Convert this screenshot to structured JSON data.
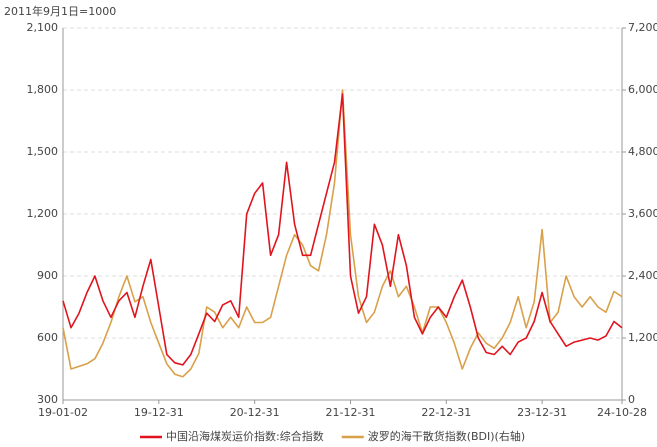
{
  "chart_data": {
    "type": "line",
    "subtitle": "2011年9月1日=1000",
    "categories": [
      "19-01-02",
      null,
      null,
      null,
      null,
      null,
      null,
      null,
      null,
      null,
      null,
      null,
      "19-12-31",
      null,
      null,
      null,
      null,
      null,
      null,
      null,
      null,
      null,
      null,
      null,
      "20-12-31",
      null,
      null,
      null,
      null,
      null,
      null,
      null,
      null,
      null,
      null,
      null,
      "21-12-31",
      null,
      null,
      null,
      null,
      null,
      null,
      null,
      null,
      null,
      null,
      null,
      "22-12-31",
      null,
      null,
      null,
      null,
      null,
      null,
      null,
      null,
      null,
      null,
      null,
      "23-12-31",
      null,
      null,
      null,
      null,
      null,
      null,
      null,
      null,
      null,
      "24-10-28"
    ],
    "series": [
      {
        "name": "中国沿海煤炭运价指数:综合指数",
        "color": "#e0141e",
        "values": [
          780,
          650,
          720,
          820,
          900,
          780,
          700,
          780,
          820,
          700,
          850,
          980,
          750,
          520,
          480,
          470,
          520,
          620,
          720,
          680,
          760,
          780,
          700,
          1200,
          1300,
          1350,
          1000,
          1100,
          1450,
          1150,
          1000,
          1000,
          1150,
          1300,
          1450,
          1780,
          900,
          720,
          800,
          1150,
          1050,
          850,
          1100,
          950,
          700,
          620,
          700,
          750,
          700,
          800,
          880,
          750,
          600,
          530,
          520,
          560,
          520,
          580,
          600,
          680,
          820,
          680,
          620,
          560,
          580,
          590,
          600,
          590,
          610,
          680,
          650
        ]
      },
      {
        "name": "波罗的海干散货指数(BDI)(右轴)",
        "color": "#d9a04a",
        "axis": "y2",
        "values": [
          1400,
          600,
          650,
          700,
          800,
          1100,
          1500,
          2000,
          2400,
          1900,
          2000,
          1500,
          1100,
          700,
          500,
          450,
          600,
          900,
          1800,
          1700,
          1400,
          1600,
          1400,
          1800,
          1500,
          1500,
          1600,
          2200,
          2800,
          3200,
          3000,
          2600,
          2500,
          3200,
          4200,
          6000,
          3200,
          2000,
          1500,
          1700,
          2200,
          2500,
          2000,
          2200,
          1800,
          1300,
          1800,
          1800,
          1500,
          1100,
          600,
          1000,
          1300,
          1100,
          1000,
          1200,
          1500,
          2000,
          1400,
          1900,
          3300,
          1500,
          1700,
          2400,
          2000,
          1800,
          2000,
          1800,
          1700,
          2100,
          2000
        ]
      }
    ],
    "ylim": [
      300,
      2100
    ],
    "yticks": [
      300,
      600,
      900,
      {
        "value": 1200,
        "label": "1,200"
      },
      {
        "value": 1500,
        "label": "1,500"
      },
      {
        "value": 1800,
        "label": "1,800"
      },
      {
        "value": 2100,
        "label": "2,100"
      }
    ],
    "y2lim": [
      0,
      7200
    ],
    "y2ticks": [
      0,
      {
        "value": 1200,
        "label": "1,200"
      },
      {
        "value": 2400,
        "label": "2,400"
      },
      {
        "value": 3600,
        "label": "3,600"
      },
      {
        "value": 4800,
        "label": "4,800"
      },
      {
        "value": 6000,
        "label": "6,000"
      },
      {
        "value": 7200,
        "label": "7,200"
      }
    ],
    "grid": true
  }
}
